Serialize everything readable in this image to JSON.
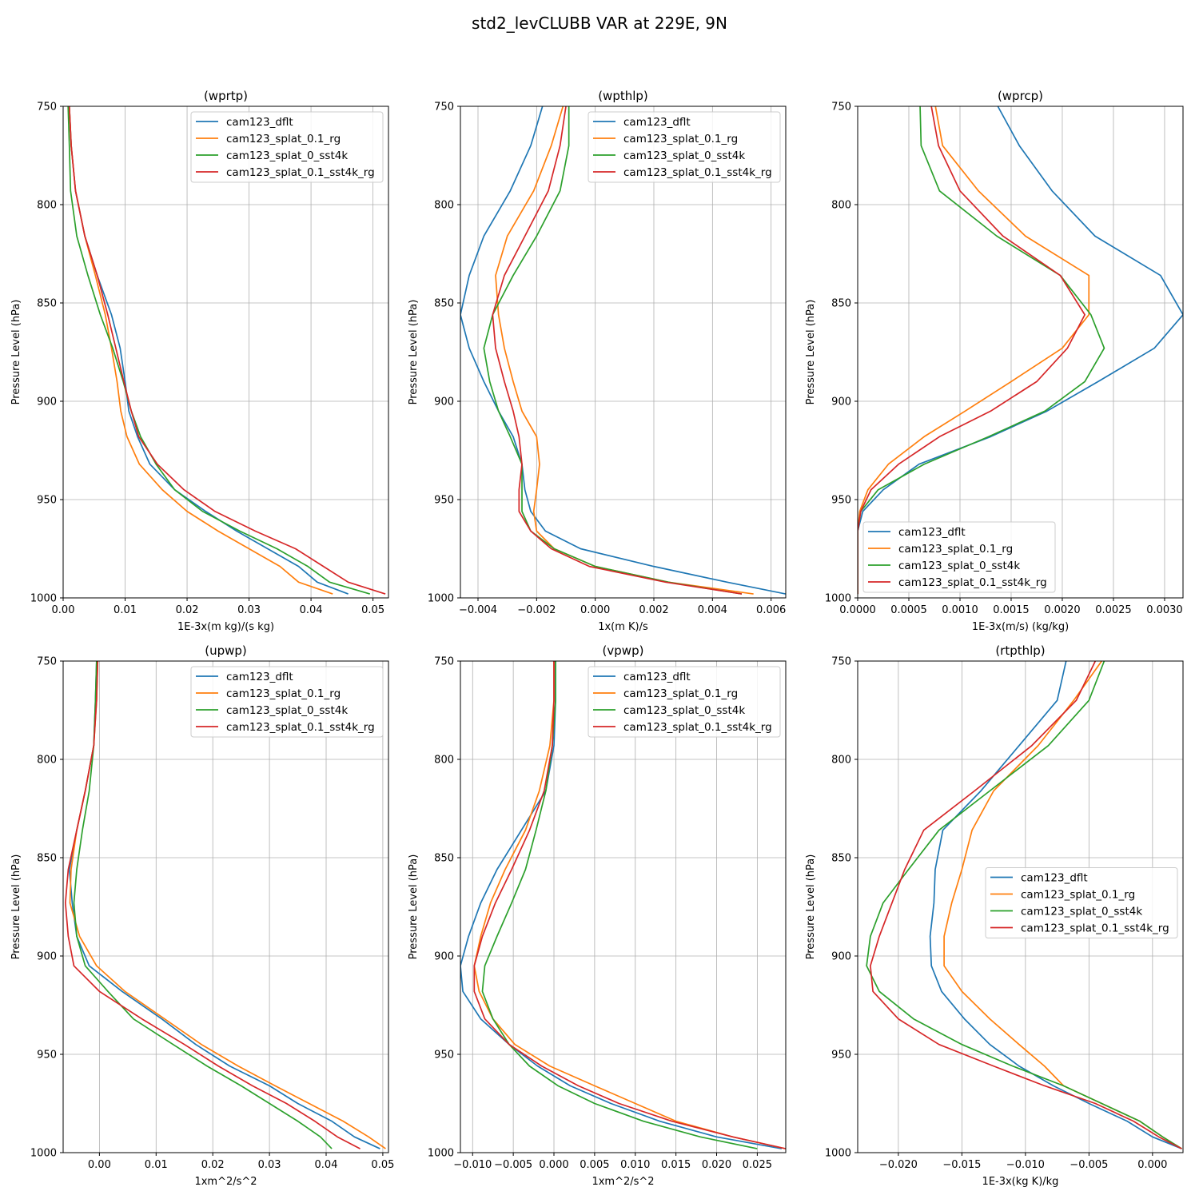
{
  "chart_data": {
    "type": "line",
    "title": "std2_levCLUBB VAR at 229E, 9N",
    "colors": [
      "#1f77b4",
      "#ff7f0e",
      "#2ca02c",
      "#d62728"
    ],
    "series_names": [
      "cam123_dflt",
      "cam123_splat_0.1_rg",
      "cam123_splat_0_sst4k",
      "cam123_splat_0.1_sst4k_rg"
    ],
    "levels": [
      750,
      770,
      793,
      816,
      836,
      856,
      873,
      890,
      905,
      918,
      932,
      945,
      956,
      966,
      975,
      984,
      992,
      998
    ],
    "ylabel": "Pressure Level (hPa)",
    "ylim": [
      750,
      1000
    ],
    "yticks": [
      750,
      800,
      850,
      900,
      950,
      1000
    ],
    "ytick_labels": [
      "750",
      "800",
      "850",
      "900",
      "950",
      "1000"
    ],
    "panels": [
      {
        "title": "(wprtp)",
        "xlabel": "1E-3x(m kg)/(s kg)",
        "xlim": [
          0,
          0.0525
        ],
        "xticks": [
          0,
          0.01,
          0.02,
          0.03,
          0.04,
          0.05
        ],
        "xtick_labels": [
          "0.00",
          "0.01",
          "0.02",
          "0.03",
          "0.04",
          "0.05"
        ],
        "legend": "top-right",
        "series": [
          {
            "name": "cam123_dflt",
            "values": [
              0.001,
              0.0013,
              0.002,
              0.0035,
              0.0055,
              0.0078,
              0.0092,
              0.01,
              0.0106,
              0.012,
              0.014,
              0.018,
              0.023,
              0.028,
              0.033,
              0.038,
              0.041,
              0.046
            ]
          },
          {
            "name": "cam123_splat_0.1_rg",
            "values": [
              0.001,
              0.0013,
              0.002,
              0.0035,
              0.0052,
              0.0068,
              0.0078,
              0.0087,
              0.0093,
              0.0103,
              0.0123,
              0.016,
              0.02,
              0.025,
              0.03,
              0.035,
              0.038,
              0.0435
            ]
          },
          {
            "name": "cam123_splat_0_sst4k",
            "values": [
              0.0008,
              0.001,
              0.0012,
              0.0022,
              0.004,
              0.006,
              0.008,
              0.0097,
              0.011,
              0.0125,
              0.015,
              0.018,
              0.0225,
              0.0285,
              0.0345,
              0.0395,
              0.043,
              0.0495
            ]
          },
          {
            "name": "cam123_splat_0.1_sst4k_rg",
            "values": [
              0.001,
              0.0013,
              0.002,
              0.0035,
              0.0055,
              0.0072,
              0.0085,
              0.0098,
              0.011,
              0.0122,
              0.0152,
              0.0195,
              0.0245,
              0.031,
              0.0375,
              0.042,
              0.046,
              0.052
            ]
          }
        ]
      },
      {
        "title": "(wpthlp)",
        "xlabel": "1x(m K)/s",
        "xlim": [
          -0.0046,
          0.0065
        ],
        "xticks": [
          -0.004,
          -0.002,
          0,
          0.002,
          0.004,
          0.006
        ],
        "xtick_labels": [
          "−0.004",
          "−0.002",
          "0.000",
          "0.002",
          "0.004",
          "0.006"
        ],
        "legend": "top-right",
        "series": [
          {
            "name": "cam123_dflt",
            "values": [
              -0.0018,
              -0.0022,
              -0.0029,
              -0.0038,
              -0.0043,
              -0.0046,
              -0.0043,
              -0.0038,
              -0.0033,
              -0.0028,
              -0.0025,
              -0.0024,
              -0.0022,
              -0.0017,
              -0.0005,
              0.002,
              0.0045,
              0.0065
            ]
          },
          {
            "name": "cam123_splat_0.1_rg",
            "values": [
              -0.0011,
              -0.0015,
              -0.0021,
              -0.003,
              -0.0034,
              -0.0033,
              -0.0031,
              -0.0028,
              -0.0025,
              -0.002,
              -0.0019,
              -0.002,
              -0.0021,
              -0.002,
              -0.0014,
              0.0,
              0.0025,
              0.0054
            ]
          },
          {
            "name": "cam123_splat_0_sst4k",
            "values": [
              -0.0009,
              -0.0009,
              -0.0012,
              -0.002,
              -0.0028,
              -0.0035,
              -0.0038,
              -0.0036,
              -0.0033,
              -0.0029,
              -0.0025,
              -0.0025,
              -0.0025,
              -0.0022,
              -0.0014,
              0.0,
              0.0025,
              0.005
            ]
          },
          {
            "name": "cam123_splat_0.1_sst4k_rg",
            "values": [
              -0.001,
              -0.0012,
              -0.0016,
              -0.0024,
              -0.0031,
              -0.0035,
              -0.0034,
              -0.0031,
              -0.0028,
              -0.0026,
              -0.0025,
              -0.0026,
              -0.0026,
              -0.0022,
              -0.0015,
              -0.0002,
              0.0024,
              0.005
            ]
          }
        ]
      },
      {
        "title": "(wprcp)",
        "xlabel": "1E-3x(m/s) (kg/kg)",
        "xlim": [
          0,
          0.00318
        ],
        "xticks": [
          0,
          0.0005,
          0.001,
          0.0015,
          0.002,
          0.0025,
          0.003
        ],
        "xtick_labels": [
          "0.0000",
          "0.0005",
          "0.0010",
          "0.0015",
          "0.0020",
          "0.0025",
          "0.0030"
        ],
        "legend": "bottom-left",
        "series": [
          {
            "name": "cam123_dflt",
            "values": [
              0.00137,
              0.00158,
              0.0019,
              0.00232,
              0.00296,
              0.00318,
              0.0029,
              0.00235,
              0.00185,
              0.0013,
              0.0006,
              0.00025,
              5e-05,
              0.0,
              0.0,
              0.0,
              0.0,
              0.0
            ]
          },
          {
            "name": "cam123_splat_0.1_rg",
            "values": [
              0.00076,
              0.00083,
              0.00118,
              0.00164,
              0.00226,
              0.00226,
              0.002,
              0.0015,
              0.00105,
              0.00065,
              0.0003,
              0.0001,
              2e-05,
              0.0,
              0.0,
              0.0,
              0.0,
              0.0
            ]
          },
          {
            "name": "cam123_splat_0_sst4k",
            "values": [
              0.00061,
              0.00062,
              0.0008,
              0.00136,
              0.00198,
              0.00228,
              0.00241,
              0.00222,
              0.00183,
              0.00128,
              0.00065,
              0.0002,
              3e-05,
              0.0,
              0.0,
              0.0,
              0.0,
              0.0
            ]
          },
          {
            "name": "cam123_splat_0.1_sst4k_rg",
            "values": [
              0.00072,
              0.00079,
              0.001,
              0.00142,
              0.00198,
              0.00222,
              0.00205,
              0.00175,
              0.0013,
              0.0008,
              0.0004,
              0.00013,
              3e-05,
              0.0,
              0.0,
              0.0,
              0.0,
              0.0
            ]
          }
        ]
      },
      {
        "title": "(upwp)",
        "xlabel": "1xm^2/s^2",
        "xlim": [
          -0.0064,
          0.051
        ],
        "xticks": [
          0,
          0.01,
          0.02,
          0.03,
          0.04,
          0.05
        ],
        "xtick_labels": [
          "0.00",
          "0.01",
          "0.02",
          "0.03",
          "0.04",
          "0.05"
        ],
        "legend": "top-right",
        "series": [
          {
            "name": "cam123_dflt",
            "values": [
              -0.0005,
              -0.0007,
              -0.001,
              -0.0025,
              -0.004,
              -0.0053,
              -0.0048,
              -0.004,
              -0.0018,
              0.004,
              0.011,
              0.017,
              0.023,
              0.03,
              0.035,
              0.041,
              0.045,
              0.0495
            ]
          },
          {
            "name": "cam123_splat_0.1_rg",
            "values": [
              -0.0003,
              -0.0005,
              -0.001,
              -0.0025,
              -0.004,
              -0.005,
              -0.0052,
              -0.0035,
              -0.0005,
              0.0045,
              0.0115,
              0.018,
              0.0245,
              0.031,
              0.037,
              0.043,
              0.0475,
              0.0505
            ]
          },
          {
            "name": "cam123_splat_0_sst4k",
            "values": [
              -0.0005,
              -0.0007,
              -0.001,
              -0.0018,
              -0.003,
              -0.004,
              -0.0045,
              -0.004,
              -0.0025,
              0.0015,
              0.006,
              0.013,
              0.019,
              0.025,
              0.03,
              0.035,
              0.039,
              0.041
            ]
          },
          {
            "name": "cam123_splat_0.1_sst4k_rg",
            "values": [
              -0.0003,
              -0.0005,
              -0.001,
              -0.0025,
              -0.004,
              -0.0055,
              -0.006,
              -0.0055,
              -0.0045,
              0.0,
              0.0075,
              0.015,
              0.021,
              0.027,
              0.033,
              0.038,
              0.042,
              0.046
            ]
          }
        ]
      },
      {
        "title": "(vpwp)",
        "xlabel": "1xm^2/s^2",
        "xlim": [
          -0.0115,
          0.0285
        ],
        "xticks": [
          -0.01,
          -0.005,
          0,
          0.005,
          0.01,
          0.015,
          0.02,
          0.025
        ],
        "xtick_labels": [
          "−0.010",
          "−0.005",
          "0.000",
          "0.005",
          "0.010",
          "0.015",
          "0.020",
          "0.025"
        ],
        "legend": "top-right",
        "series": [
          {
            "name": "cam123_dflt",
            "values": [
              0.0002,
              0.0002,
              0.0,
              -0.001,
              -0.004,
              -0.007,
              -0.009,
              -0.0105,
              -0.0115,
              -0.0112,
              -0.009,
              -0.0055,
              -0.002,
              0.002,
              0.007,
              0.013,
              0.02,
              0.028
            ]
          },
          {
            "name": "cam123_splat_0.1_rg",
            "values": [
              0.0,
              0.0,
              -0.0005,
              -0.0018,
              -0.0035,
              -0.006,
              -0.0078,
              -0.009,
              -0.0098,
              -0.0092,
              -0.0075,
              -0.0048,
              -0.0005,
              0.005,
              0.01,
              0.015,
              0.022,
              0.0285
            ]
          },
          {
            "name": "cam123_splat_0_sst4k",
            "values": [
              0.0002,
              0.0002,
              -0.0002,
              -0.001,
              -0.0022,
              -0.0035,
              -0.0052,
              -0.007,
              -0.0085,
              -0.0088,
              -0.0075,
              -0.0055,
              -0.003,
              0.0005,
              0.005,
              0.011,
              0.018,
              0.025
            ]
          },
          {
            "name": "cam123_splat_0.1_sst4k_rg",
            "values": [
              0.0,
              0.0,
              -0.0002,
              -0.0012,
              -0.003,
              -0.0052,
              -0.0072,
              -0.0088,
              -0.0098,
              -0.0098,
              -0.0085,
              -0.0055,
              -0.0015,
              0.003,
              0.008,
              0.0145,
              0.022,
              0.0285
            ]
          }
        ]
      },
      {
        "title": "(rtpthlp)",
        "xlabel": "1E-3x(kg K)/kg",
        "xlim": [
          -0.0232,
          0.0024
        ],
        "xticks": [
          -0.02,
          -0.015,
          -0.01,
          -0.005,
          0
        ],
        "xtick_labels": [
          "−0.020",
          "−0.015",
          "−0.010",
          "−0.005",
          "0.000"
        ],
        "legend": "center-right",
        "series": [
          {
            "name": "cam123_dflt",
            "values": [
              -0.0068,
              -0.0075,
              -0.0105,
              -0.0135,
              -0.0165,
              -0.0171,
              -0.0172,
              -0.0175,
              -0.0174,
              -0.0166,
              -0.0148,
              -0.0128,
              -0.0105,
              -0.0078,
              -0.005,
              -0.002,
              0.0,
              0.0023
            ]
          },
          {
            "name": "cam123_splat_0.1_rg",
            "values": [
              -0.004,
              -0.0062,
              -0.009,
              -0.0125,
              -0.0142,
              -0.015,
              -0.0158,
              -0.0164,
              -0.0164,
              -0.015,
              -0.0128,
              -0.0105,
              -0.0085,
              -0.007,
              -0.004,
              -0.001,
              0.0008,
              0.0023
            ]
          },
          {
            "name": "cam123_splat_0_sst4k",
            "values": [
              -0.0038,
              -0.005,
              -0.0082,
              -0.0128,
              -0.0168,
              -0.0192,
              -0.0212,
              -0.0222,
              -0.0225,
              -0.0215,
              -0.0188,
              -0.015,
              -0.011,
              -0.007,
              -0.004,
              -0.001,
              0.0008,
              0.0023
            ]
          },
          {
            "name": "cam123_splat_0.1_sst4k_rg",
            "values": [
              -0.0045,
              -0.006,
              -0.0095,
              -0.014,
              -0.018,
              -0.0195,
              -0.0205,
              -0.0215,
              -0.0222,
              -0.022,
              -0.02,
              -0.0168,
              -0.0125,
              -0.0085,
              -0.0045,
              -0.0015,
              0.0005,
              0.0023
            ]
          }
        ]
      }
    ]
  }
}
